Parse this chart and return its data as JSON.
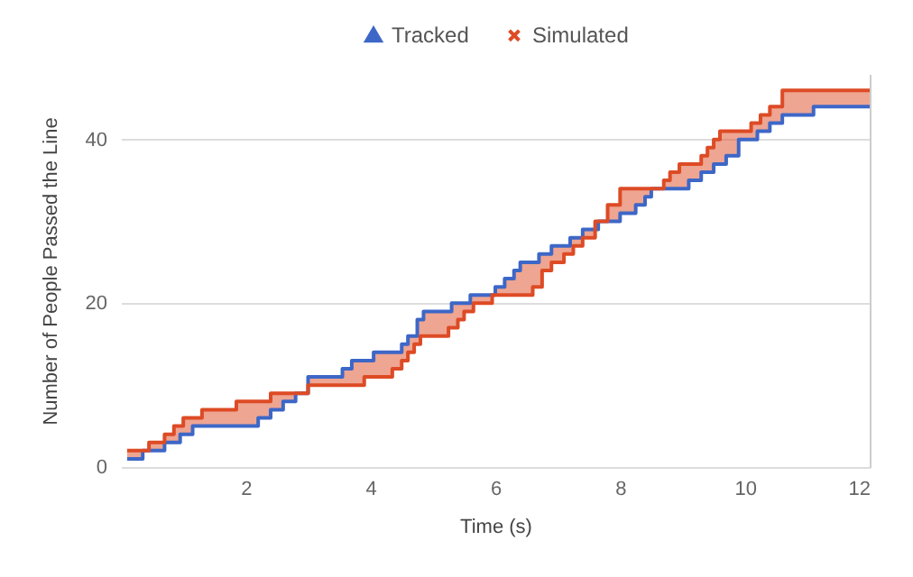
{
  "chart_data": {
    "type": "step",
    "xlabel": "Time (s)",
    "ylabel": "Number of People Passed the Line",
    "x": [
      0.1,
      0.35,
      0.45,
      0.7,
      0.85,
      0.95,
      1.0,
      1.15,
      1.3,
      1.85,
      2.2,
      2.4,
      2.6,
      2.8,
      3.0,
      3.55,
      3.7,
      3.9,
      4.05,
      4.35,
      4.5,
      4.6,
      4.7,
      4.75,
      4.8,
      4.85,
      5.25,
      5.3,
      5.4,
      5.5,
      5.6,
      5.65,
      5.95,
      6.0,
      6.15,
      6.3,
      6.4,
      6.6,
      6.7,
      6.75,
      6.9,
      7.1,
      7.2,
      7.25,
      7.4,
      7.6,
      7.65,
      7.8,
      8.0,
      8.25,
      8.4,
      8.5,
      8.7,
      8.8,
      8.95,
      9.1,
      9.3,
      9.4,
      9.5,
      9.6,
      9.7,
      9.9,
      10.1,
      10.2,
      10.25,
      10.4,
      10.6,
      11.1,
      12
    ],
    "series": [
      {
        "name": "Tracked",
        "color": "#3d67c7",
        "values": [
          1,
          2,
          2,
          3,
          3,
          4,
          4,
          5,
          5,
          5,
          6,
          7,
          8,
          9,
          11,
          12,
          13,
          13,
          14,
          14,
          15,
          16,
          16,
          18,
          18,
          19,
          19,
          20,
          20,
          20,
          21,
          21,
          21,
          22,
          23,
          24,
          25,
          25,
          26,
          26,
          27,
          27,
          28,
          28,
          29,
          29,
          30,
          30,
          31,
          32,
          33,
          34,
          34,
          34,
          34,
          35,
          36,
          36,
          37,
          37,
          38,
          40,
          40,
          41,
          41,
          42,
          43,
          44,
          44
        ]
      },
      {
        "name": "Simulated",
        "color": "#dd4b25",
        "values": [
          2,
          2,
          3,
          4,
          5,
          5,
          6,
          6,
          7,
          8,
          8,
          9,
          9,
          9,
          10,
          10,
          10,
          11,
          11,
          12,
          13,
          14,
          15,
          15,
          16,
          16,
          17,
          17,
          18,
          19,
          19,
          20,
          21,
          21,
          21,
          21,
          21,
          22,
          22,
          24,
          25,
          26,
          26,
          27,
          28,
          30,
          30,
          32,
          34,
          34,
          34,
          34,
          35,
          36,
          37,
          37,
          38,
          39,
          40,
          41,
          41,
          41,
          42,
          42,
          43,
          44,
          46,
          46,
          46
        ],
        "lower": [
          1,
          2,
          2,
          3,
          3,
          4,
          4,
          5,
          5,
          5,
          6,
          7,
          8,
          9,
          10,
          10,
          10,
          11,
          11,
          12,
          13,
          14,
          15,
          15,
          16,
          16,
          17,
          17,
          18,
          19,
          19,
          20,
          21,
          21,
          21,
          21,
          21,
          22,
          22,
          24,
          25,
          26,
          26,
          27,
          28,
          29,
          30,
          30,
          31,
          32,
          33,
          34,
          34,
          34,
          34,
          35,
          36,
          36,
          37,
          37,
          38,
          40,
          40,
          41,
          41,
          42,
          43,
          44,
          44
        ],
        "upper": [
          2,
          2,
          3,
          4,
          5,
          5,
          6,
          6,
          7,
          8,
          8,
          9,
          9,
          9,
          11,
          12,
          13,
          13,
          14,
          14,
          15,
          16,
          16,
          18,
          18,
          19,
          19,
          20,
          20,
          20,
          21,
          21,
          21,
          22,
          23,
          24,
          25,
          25,
          26,
          26,
          27,
          27,
          28,
          28,
          29,
          30,
          30,
          32,
          34,
          34,
          34,
          34,
          35,
          36,
          37,
          37,
          38,
          39,
          40,
          41,
          41,
          41,
          42,
          42,
          43,
          44,
          46,
          46,
          46
        ]
      }
    ],
    "xlim": [
      0,
      12
    ],
    "xticks": [
      2,
      4,
      6,
      8,
      10,
      12
    ],
    "ylim": [
      0,
      48
    ],
    "yticks": [
      0,
      20,
      40
    ],
    "grid": "y",
    "legend": "top"
  }
}
